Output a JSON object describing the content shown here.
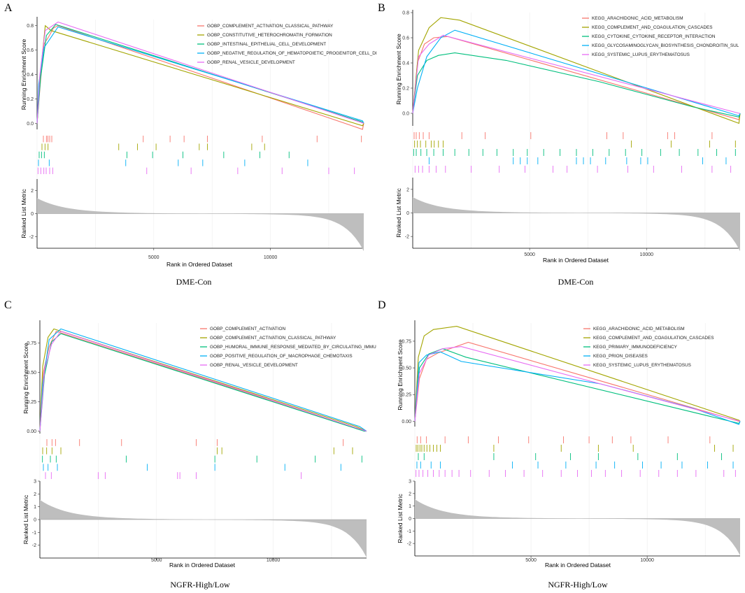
{
  "figure": {
    "panels": [
      "A",
      "B",
      "C",
      "D"
    ]
  },
  "chart_data": [
    {
      "panel_label": "A",
      "caption": "DME-Con",
      "type": "line",
      "ylabel": "Running Enrichment Score",
      "ylabel2": "Ranked List Metric",
      "xlabel": "Rank in Ordered Dataset",
      "xmax": 14000,
      "xticks": [
        5000,
        10000
      ],
      "es_ylim": [
        -0.05,
        0.85
      ],
      "es_ticks": [
        0.0,
        0.2,
        0.4,
        0.6,
        0.8
      ],
      "es_tick_labels": [
        "0.0",
        "0.2",
        "0.4",
        "0.6",
        "0.8"
      ],
      "metric_ylim": [
        -3,
        3
      ],
      "metric_ticks": [
        2,
        0,
        -2
      ],
      "metric_tick_labels": [
        "2",
        "0",
        "-2"
      ],
      "metric_max": 1.2,
      "metric_min": -3.0,
      "legend_font_size": 6.2,
      "series": [
        {
          "name": "GOBP_COMPLEMENT_ACTIVATION_CLASSICAL_PATHWAY",
          "color": "#F8766D",
          "x": [
            0,
            150,
            300,
            500,
            700,
            900,
            13950,
            14000
          ],
          "y": [
            0.0,
            0.35,
            0.65,
            0.71,
            0.78,
            0.8,
            -0.05,
            0.0
          ],
          "hits": [
            270,
            400,
            460,
            540,
            630,
            4550,
            5700,
            6300,
            7300,
            9650,
            12000,
            13900
          ]
        },
        {
          "name": "GOBP_CONSTITUTIVE_HETEROCHROMATIN_FORMATION",
          "color": "#A3A500",
          "x": [
            0,
            150,
            350,
            600,
            13950,
            14000
          ],
          "y": [
            0.0,
            0.42,
            0.8,
            0.76,
            -0.02,
            0.0
          ],
          "hits": [
            210,
            340,
            470,
            3500,
            4300,
            5100,
            6950,
            7300,
            9200,
            9750
          ]
        },
        {
          "name": "GOBP_INTESTINAL_EPITHELIAL_CELL_DEVELOPMENT",
          "color": "#00BF7D",
          "x": [
            0,
            150,
            400,
            800,
            13950,
            14000
          ],
          "y": [
            0.0,
            0.37,
            0.72,
            0.81,
            0.01,
            0.0
          ],
          "hits": [
            90,
            190,
            310,
            3850,
            4950,
            6250,
            8000,
            9550,
            10800
          ]
        },
        {
          "name": "GOBP_NEGATIVE_REGULATION_OF_HEMATOPOIETIC_PROGENITOR_CELL_DI",
          "color": "#00B0F6",
          "x": [
            0,
            70,
            300,
            900,
            13950,
            14000
          ],
          "y": [
            0.0,
            0.32,
            0.62,
            0.79,
            0.02,
            0.0
          ],
          "hits": [
            60,
            520,
            3800,
            6050,
            7100,
            8900,
            11600
          ]
        },
        {
          "name": "GOBP_RENAL_VESICLE_DEVELOPMENT",
          "color": "#E76BF3",
          "x": [
            0,
            120,
            350,
            900,
            14000
          ],
          "y": [
            0.0,
            0.4,
            0.76,
            0.83,
            0.0
          ],
          "hits": [
            40,
            160,
            290,
            390,
            540,
            670,
            4700,
            6600,
            8600,
            10500,
            12500,
            13600
          ]
        }
      ]
    },
    {
      "panel_label": "B",
      "caption": "DME-Con",
      "type": "line",
      "ylabel": "Running Enrichment Score",
      "ylabel2": "Ranked List Metric",
      "xlabel": "Rank in Ordered Dataset",
      "xmax": 14000,
      "xticks": [
        5000,
        10000
      ],
      "es_ylim": [
        -0.1,
        0.8
      ],
      "es_ticks": [
        0.0,
        0.2,
        0.4,
        0.6,
        0.8
      ],
      "es_tick_labels": [
        "0.0",
        "0.2",
        "0.4",
        "0.6",
        "0.8"
      ],
      "metric_ylim": [
        -3,
        3
      ],
      "metric_ticks": [
        2,
        0,
        -2
      ],
      "metric_tick_labels": [
        "2",
        "0",
        "-2"
      ],
      "metric_max": 1.2,
      "metric_min": -3.0,
      "legend_font_size": 6.2,
      "series": [
        {
          "name": "KEGG_ARACHIDONIC_ACID_METABOLISM",
          "color": "#F8766D",
          "x": [
            0,
            200,
            500,
            900,
            1500,
            13950,
            14000
          ],
          "y": [
            0.0,
            0.4,
            0.55,
            0.6,
            0.61,
            -0.05,
            0.0
          ],
          "hits": [
            60,
            150,
            280,
            450,
            700,
            2100,
            3100,
            5050,
            8300,
            9000,
            10900,
            11200,
            12800
          ]
        },
        {
          "name": "KEGG_COMPLEMENT_AND_COAGULATION_CASCADES",
          "color": "#A3A500",
          "x": [
            0,
            250,
            700,
            1200,
            2000,
            13950,
            14000
          ],
          "y": [
            0.0,
            0.5,
            0.68,
            0.76,
            0.74,
            -0.08,
            0.0
          ],
          "hits": [
            80,
            200,
            330,
            560,
            790,
            920,
            1100,
            1300,
            9350,
            11050,
            12700,
            13800
          ]
        },
        {
          "name": "KEGG_CYTOKINE_CYTOKINE_RECEPTOR_INTERACTION",
          "color": "#00BF7D",
          "x": [
            0,
            200,
            600,
            1100,
            1800,
            4000,
            8000,
            12000,
            13950,
            14000
          ],
          "y": [
            0.0,
            0.3,
            0.42,
            0.46,
            0.48,
            0.42,
            0.25,
            0.05,
            -0.03,
            0.0
          ],
          "hits": [
            40,
            150,
            350,
            600,
            900,
            1300,
            1800,
            2400,
            3000,
            3600,
            4300,
            4900,
            5600,
            6300,
            7000,
            7700,
            8400,
            9100,
            9800,
            10600,
            11400,
            12200,
            13000,
            13800
          ]
        },
        {
          "name": "KEGG_GLYCOSAMINOGLYCAN_BIOSYNTHESIS_CHONDROITIN_SUL",
          "color": "#00B0F6",
          "x": [
            0,
            200,
            600,
            1200,
            1800,
            13950,
            14000
          ],
          "y": [
            0.0,
            0.2,
            0.45,
            0.6,
            0.66,
            -0.02,
            0.0
          ],
          "hits": [
            700,
            4300,
            4600,
            4900,
            5350,
            7000,
            7300,
            7600,
            8250,
            9150,
            9750,
            10050,
            12400,
            13400
          ]
        },
        {
          "name": "KEGG_SYSTEMIC_LUPUS_ERYTHEMATOSUS",
          "color": "#E76BF3",
          "x": [
            0,
            250,
            700,
            1300,
            13950,
            14000
          ],
          "y": [
            0.0,
            0.45,
            0.55,
            0.62,
            0.0,
            0.0
          ],
          "hits": [
            100,
            250,
            420,
            700,
            1000,
            1400,
            2500,
            3700,
            4800,
            6000,
            6600,
            7900,
            9200,
            10300,
            11500,
            12800,
            13600
          ]
        }
      ]
    },
    {
      "panel_label": "C",
      "caption": "NGFR-High/Low",
      "type": "line",
      "ylabel": "Running Enrichment Score",
      "ylabel2": "Ranked List Metric",
      "xlabel": "Rank in Ordered Dataset",
      "xmax": 14000,
      "xticks": [
        5000,
        10000
      ],
      "es_ylim": [
        -0.02,
        0.92
      ],
      "es_ticks": [
        0.0,
        0.25,
        0.5,
        0.75
      ],
      "es_tick_labels": [
        "0.00",
        "0.25",
        "0.50",
        "0.75"
      ],
      "metric_ylim": [
        -3,
        3
      ],
      "metric_ticks": [
        3,
        2,
        1,
        0,
        -1,
        -2
      ],
      "metric_tick_labels": [
        "3",
        "2",
        "1",
        "0",
        "-1",
        "-2"
      ],
      "metric_max": 1.4,
      "metric_min": -2.7,
      "legend_font_size": 6.0,
      "series": [
        {
          "name": "GOBP_COMPLEMENT_ACTIVATION",
          "color": "#F8766D",
          "x": [
            0,
            150,
            400,
            700,
            13700,
            14000
          ],
          "y": [
            0.0,
            0.5,
            0.72,
            0.85,
            0.02,
            0.0
          ],
          "hits": [
            300,
            520,
            670,
            1700,
            3500,
            6700,
            7600,
            13000
          ]
        },
        {
          "name": "GOBP_COMPLEMENT_ACTIVATION_CLASSICAL_PATHWAY",
          "color": "#A3A500",
          "x": [
            0,
            120,
            350,
            600,
            13550,
            14000
          ],
          "y": [
            0.0,
            0.55,
            0.8,
            0.87,
            0.04,
            0.0
          ],
          "hits": [
            120,
            290,
            520,
            900,
            7600,
            7800,
            12600,
            13400
          ]
        },
        {
          "name": "GOBP_HUMORAL_IMMUNE_RESPONSE_MEDIATED_BY_CIRCULATING_IMMU",
          "color": "#00BF7D",
          "x": [
            0,
            200,
            500,
            900,
            13900,
            14000
          ],
          "y": [
            0.0,
            0.48,
            0.76,
            0.83,
            0.0,
            0.0
          ],
          "hits": [
            110,
            450,
            700,
            3700,
            7500,
            9300,
            11800,
            13800
          ]
        },
        {
          "name": "GOBP_POSITIVE_REGULATION_OF_MACROPHAGE_CHEMOTAXIS",
          "color": "#00B0F6",
          "x": [
            0,
            120,
            400,
            900,
            13700,
            14000
          ],
          "y": [
            0.0,
            0.4,
            0.78,
            0.87,
            0.04,
            0.0
          ],
          "hits": [
            150,
            350,
            750,
            4600,
            7500,
            10500,
            12900
          ]
        },
        {
          "name": "GOBP_RENAL_VESICLE_DEVELOPMENT",
          "color": "#E76BF3",
          "x": [
            0,
            200,
            500,
            900,
            14000
          ],
          "y": [
            0.0,
            0.52,
            0.74,
            0.85,
            0.0
          ],
          "hits": [
            240,
            490,
            2500,
            2800,
            5900,
            6000,
            6700,
            11200
          ]
        }
      ]
    },
    {
      "panel_label": "D",
      "caption": "NGFR-High/Low",
      "type": "line",
      "ylabel": "Running Enrichment Score",
      "ylabel2": "Ranked List Metric",
      "xlabel": "Rank in Ordered Dataset",
      "xmax": 14000,
      "xticks": [
        5000,
        10000
      ],
      "es_ylim": [
        -0.05,
        0.92
      ],
      "es_ticks": [
        0.0,
        0.25,
        0.5,
        0.75
      ],
      "es_tick_labels": [
        "0.00",
        "0.25",
        "0.50",
        "0.75"
      ],
      "metric_ylim": [
        -3,
        3
      ],
      "metric_ticks": [
        3,
        2,
        1,
        0,
        -1,
        -2
      ],
      "metric_tick_labels": [
        "3",
        "2",
        "1",
        "0",
        "-1",
        "-2"
      ],
      "metric_max": 1.4,
      "metric_min": -2.7,
      "legend_font_size": 6.0,
      "series": [
        {
          "name": "KEGG_ARACHIDONIC_ACID_METABOLISM",
          "color": "#F8766D",
          "x": [
            0,
            200,
            500,
            1000,
            2300,
            13950,
            14000
          ],
          "y": [
            0.0,
            0.4,
            0.58,
            0.64,
            0.74,
            0.0,
            0.0
          ],
          "hits": [
            100,
            250,
            500,
            1300,
            2300,
            3600,
            4900,
            6400,
            7500,
            8500,
            9300,
            10900,
            12700
          ]
        },
        {
          "name": "KEGG_COMPLEMENT_AND_COAGULATION_CASCADES",
          "color": "#A3A500",
          "x": [
            0,
            150,
            400,
            800,
            1800,
            13950,
            14000
          ],
          "y": [
            0.0,
            0.6,
            0.8,
            0.86,
            0.89,
            0.01,
            0.0
          ],
          "hits": [
            60,
            130,
            220,
            300,
            400,
            520,
            650,
            800,
            950,
            1100,
            3400,
            6300,
            7900,
            9400,
            12900,
            13700
          ]
        },
        {
          "name": "KEGG_PRIMARY_IMMUNODEFICIENCY",
          "color": "#00BF7D",
          "x": [
            0,
            200,
            600,
            1200,
            2200,
            13950,
            14000
          ],
          "y": [
            0.0,
            0.5,
            0.63,
            0.68,
            0.6,
            -0.02,
            0.0
          ],
          "hits": [
            150,
            400,
            3400,
            5200,
            6700,
            7900,
            9600,
            11300,
            13200
          ]
        },
        {
          "name": "KEGG_PRION_DISEASES",
          "color": "#00B0F6",
          "x": [
            0,
            180,
            500,
            1100,
            2000,
            8000,
            12000,
            13950,
            14000
          ],
          "y": [
            0.0,
            0.55,
            0.62,
            0.65,
            0.56,
            0.35,
            0.12,
            -0.03,
            0.0
          ],
          "hits": [
            90,
            250,
            700,
            1100,
            4200,
            5300,
            6500,
            7800,
            8600,
            9800,
            10600,
            11500,
            12600,
            13700
          ]
        },
        {
          "name": "KEGG_SYSTEMIC_LUPUS_ERYTHEMATOSUS",
          "color": "#E76BF3",
          "x": [
            0,
            200,
            600,
            1200,
            2000,
            14000
          ],
          "y": [
            0.0,
            0.45,
            0.62,
            0.68,
            0.7,
            0.0
          ],
          "hits": [
            50,
            180,
            350,
            560,
            800,
            1050,
            1300,
            1600,
            1900,
            2400,
            3200,
            3900,
            4700,
            5500,
            6300,
            7000,
            7600,
            8200,
            8900,
            9700,
            10500,
            11300,
            12100,
            13300,
            13800
          ]
        }
      ]
    }
  ]
}
